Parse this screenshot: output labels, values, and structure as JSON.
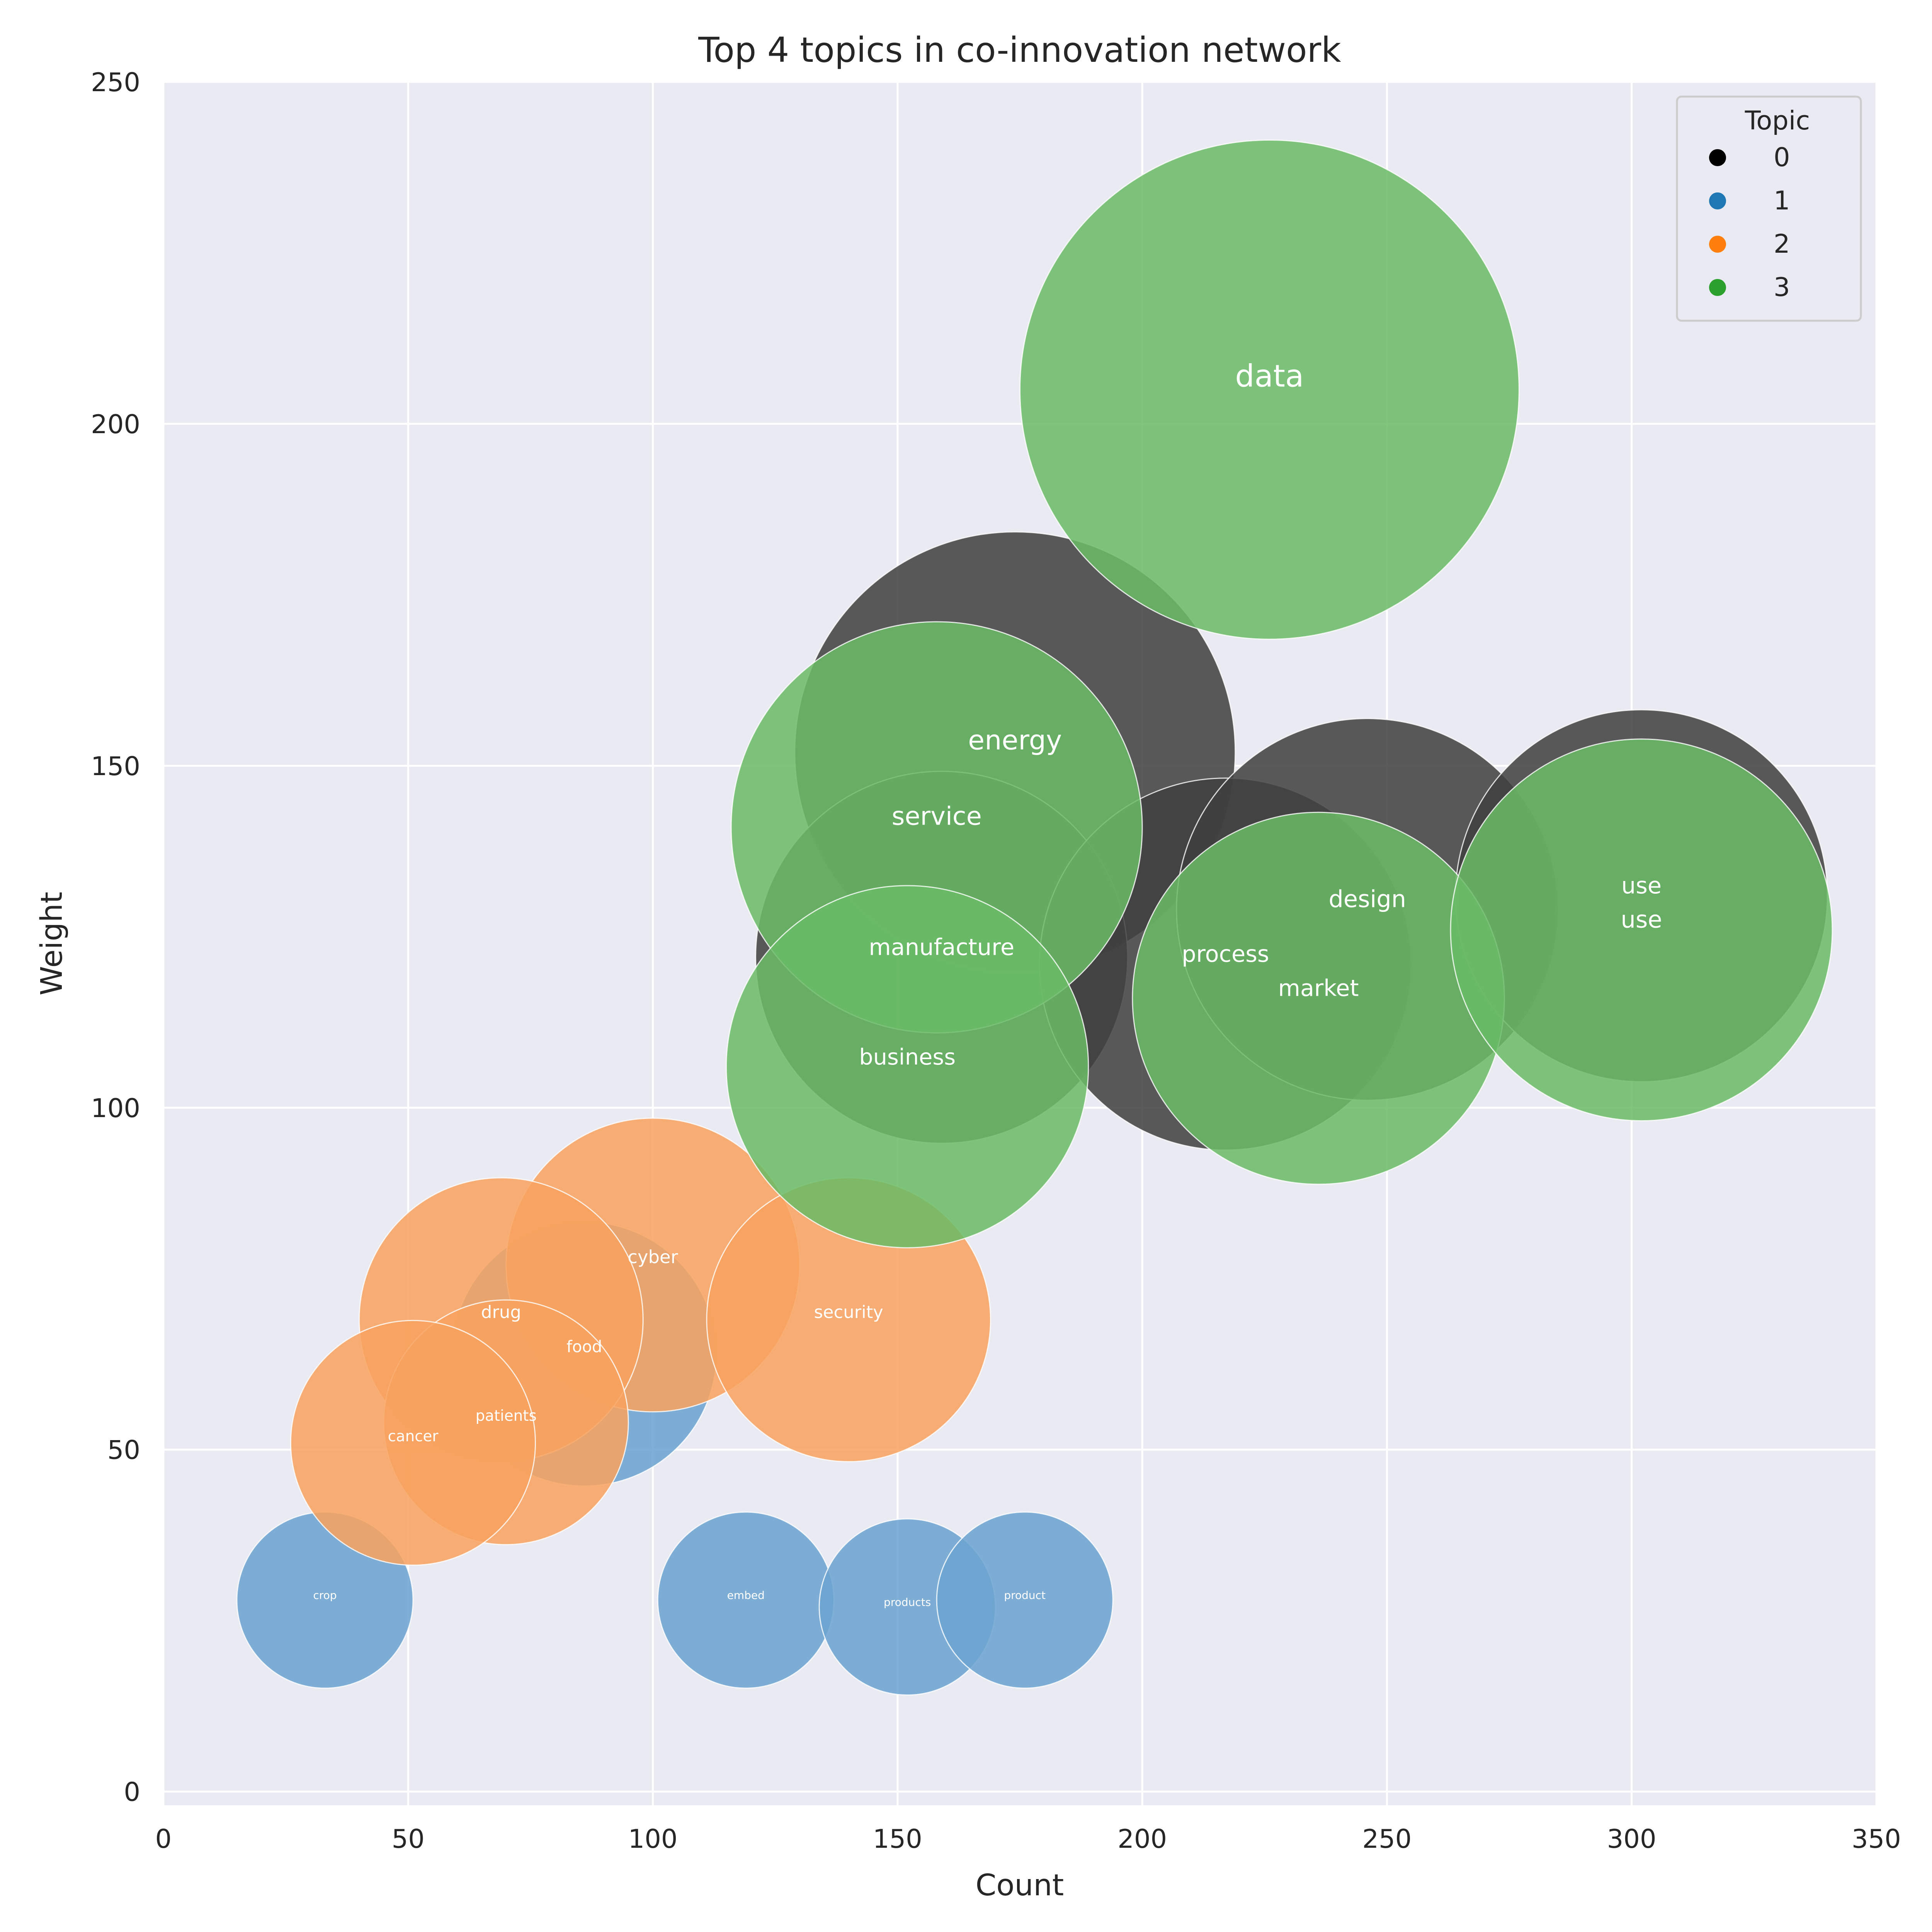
{
  "chart_data": {
    "type": "scatter",
    "variant": "bubble",
    "title": "Top 4 topics in co-innovation network",
    "xlabel": "Count",
    "ylabel": "Weight",
    "xlim": [
      0,
      350
    ],
    "ylim": [
      -2,
      250
    ],
    "xticks": [
      0,
      50,
      100,
      150,
      200,
      250,
      300,
      350
    ],
    "yticks": [
      0,
      50,
      100,
      150,
      200,
      250
    ],
    "grid": true,
    "legend": {
      "title": "Topic",
      "placement": "top-right",
      "entries": [
        {
          "label": "0",
          "color": "#000000"
        },
        {
          "label": "1",
          "color": "#1f77b4"
        },
        {
          "label": "2",
          "color": "#ff7f0e"
        },
        {
          "label": "3",
          "color": "#2ca02c"
        }
      ]
    },
    "colors": {
      "plot_background": "#eaeaf2",
      "grid": "#ffffff",
      "bubble_topic_0": "#404040",
      "bubble_topic_1": "#6ba3d0",
      "bubble_topic_2": "#f8a25e",
      "bubble_topic_3": "#6abc67"
    },
    "series": [
      {
        "topic": "0",
        "points": [
          {
            "label": "energy",
            "x": 174,
            "y": 152,
            "size": 45
          },
          {
            "label": "manufacture",
            "x": 159,
            "y": 122,
            "size": 38
          },
          {
            "label": "process",
            "x": 217,
            "y": 121,
            "size": 38
          },
          {
            "label": "design",
            "x": 246,
            "y": 129,
            "size": 39
          },
          {
            "label": "use",
            "x": 302,
            "y": 131,
            "size": 38
          }
        ]
      },
      {
        "topic": "1",
        "points": [
          {
            "label": "food",
            "x": 86,
            "y": 64,
            "size": 27
          },
          {
            "label": "crop",
            "x": 33,
            "y": 28,
            "size": 18
          },
          {
            "label": "embed",
            "x": 119,
            "y": 28,
            "size": 18
          },
          {
            "label": "products",
            "x": 152,
            "y": 27,
            "size": 18
          },
          {
            "label": "product",
            "x": 176,
            "y": 28,
            "size": 18
          }
        ]
      },
      {
        "topic": "2",
        "points": [
          {
            "label": "cyber",
            "x": 100,
            "y": 77,
            "size": 30
          },
          {
            "label": "drug",
            "x": 69,
            "y": 69,
            "size": 29
          },
          {
            "label": "security",
            "x": 140,
            "y": 69,
            "size": 29
          },
          {
            "label": "patients",
            "x": 70,
            "y": 54,
            "size": 25
          },
          {
            "label": "cancer",
            "x": 51,
            "y": 51,
            "size": 25
          }
        ]
      },
      {
        "topic": "3",
        "points": [
          {
            "label": "data",
            "x": 226,
            "y": 205,
            "size": 51
          },
          {
            "label": "service",
            "x": 158,
            "y": 141,
            "size": 42
          },
          {
            "label": "market",
            "x": 236,
            "y": 116,
            "size": 38
          },
          {
            "label": "use",
            "x": 302,
            "y": 126,
            "size": 39
          },
          {
            "label": "business",
            "x": 152,
            "y": 106,
            "size": 37
          }
        ]
      }
    ]
  }
}
